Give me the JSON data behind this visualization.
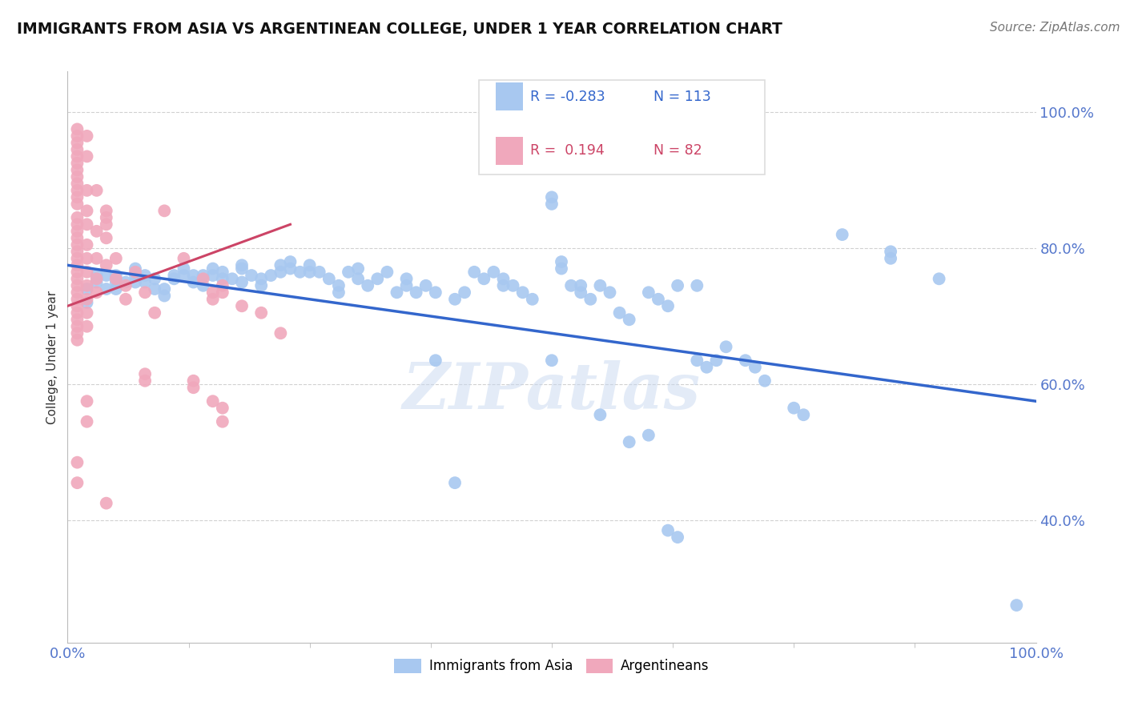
{
  "title": "IMMIGRANTS FROM ASIA VS ARGENTINEAN COLLEGE, UNDER 1 YEAR CORRELATION CHART",
  "source": "Source: ZipAtlas.com",
  "ylabel": "College, Under 1 year",
  "watermark": "ZIPatlas",
  "legend_r_blue": "-0.283",
  "legend_n_blue": "113",
  "legend_r_pink": "0.194",
  "legend_n_pink": "82",
  "background_color": "#ffffff",
  "grid_color": "#cccccc",
  "blue_color": "#a8c8f0",
  "pink_color": "#f0a8bc",
  "blue_line_color": "#3366cc",
  "pink_line_color": "#cc4466",
  "blue_scatter": [
    [
      0.02,
      0.74
    ],
    [
      0.02,
      0.72
    ],
    [
      0.03,
      0.75
    ],
    [
      0.03,
      0.76
    ],
    [
      0.04,
      0.76
    ],
    [
      0.04,
      0.74
    ],
    [
      0.05,
      0.74
    ],
    [
      0.05,
      0.76
    ],
    [
      0.05,
      0.75
    ],
    [
      0.06,
      0.75
    ],
    [
      0.07,
      0.76
    ],
    [
      0.07,
      0.77
    ],
    [
      0.07,
      0.75
    ],
    [
      0.08,
      0.76
    ],
    [
      0.08,
      0.75
    ],
    [
      0.09,
      0.74
    ],
    [
      0.09,
      0.755
    ],
    [
      0.1,
      0.74
    ],
    [
      0.1,
      0.73
    ],
    [
      0.11,
      0.76
    ],
    [
      0.11,
      0.755
    ],
    [
      0.12,
      0.77
    ],
    [
      0.12,
      0.76
    ],
    [
      0.13,
      0.76
    ],
    [
      0.13,
      0.75
    ],
    [
      0.14,
      0.76
    ],
    [
      0.14,
      0.745
    ],
    [
      0.15,
      0.77
    ],
    [
      0.15,
      0.76
    ],
    [
      0.16,
      0.755
    ],
    [
      0.16,
      0.765
    ],
    [
      0.17,
      0.755
    ],
    [
      0.18,
      0.775
    ],
    [
      0.18,
      0.77
    ],
    [
      0.18,
      0.75
    ],
    [
      0.19,
      0.76
    ],
    [
      0.2,
      0.755
    ],
    [
      0.2,
      0.745
    ],
    [
      0.21,
      0.76
    ],
    [
      0.22,
      0.775
    ],
    [
      0.22,
      0.765
    ],
    [
      0.23,
      0.78
    ],
    [
      0.23,
      0.77
    ],
    [
      0.24,
      0.765
    ],
    [
      0.25,
      0.765
    ],
    [
      0.25,
      0.775
    ],
    [
      0.26,
      0.765
    ],
    [
      0.27,
      0.755
    ],
    [
      0.28,
      0.745
    ],
    [
      0.28,
      0.735
    ],
    [
      0.29,
      0.765
    ],
    [
      0.3,
      0.77
    ],
    [
      0.3,
      0.755
    ],
    [
      0.31,
      0.745
    ],
    [
      0.32,
      0.755
    ],
    [
      0.33,
      0.765
    ],
    [
      0.34,
      0.735
    ],
    [
      0.35,
      0.745
    ],
    [
      0.35,
      0.755
    ],
    [
      0.36,
      0.735
    ],
    [
      0.37,
      0.745
    ],
    [
      0.38,
      0.735
    ],
    [
      0.4,
      0.725
    ],
    [
      0.41,
      0.735
    ],
    [
      0.42,
      0.765
    ],
    [
      0.43,
      0.755
    ],
    [
      0.44,
      0.765
    ],
    [
      0.45,
      0.745
    ],
    [
      0.45,
      0.755
    ],
    [
      0.46,
      0.745
    ],
    [
      0.47,
      0.735
    ],
    [
      0.48,
      0.725
    ],
    [
      0.5,
      0.875
    ],
    [
      0.5,
      0.865
    ],
    [
      0.51,
      0.78
    ],
    [
      0.51,
      0.77
    ],
    [
      0.52,
      0.745
    ],
    [
      0.53,
      0.745
    ],
    [
      0.53,
      0.735
    ],
    [
      0.54,
      0.725
    ],
    [
      0.55,
      0.745
    ],
    [
      0.56,
      0.735
    ],
    [
      0.57,
      0.705
    ],
    [
      0.58,
      0.695
    ],
    [
      0.6,
      0.735
    ],
    [
      0.61,
      0.725
    ],
    [
      0.62,
      0.715
    ],
    [
      0.63,
      0.745
    ],
    [
      0.65,
      0.745
    ],
    [
      0.65,
      0.635
    ],
    [
      0.66,
      0.625
    ],
    [
      0.67,
      0.635
    ],
    [
      0.68,
      0.655
    ],
    [
      0.7,
      0.635
    ],
    [
      0.71,
      0.625
    ],
    [
      0.72,
      0.605
    ],
    [
      0.75,
      0.565
    ],
    [
      0.76,
      0.555
    ],
    [
      0.8,
      0.82
    ],
    [
      0.85,
      0.795
    ],
    [
      0.85,
      0.785
    ],
    [
      0.9,
      0.755
    ],
    [
      0.5,
      0.635
    ],
    [
      0.55,
      0.555
    ],
    [
      0.6,
      0.525
    ],
    [
      0.58,
      0.515
    ],
    [
      0.38,
      0.635
    ],
    [
      0.4,
      0.455
    ],
    [
      0.62,
      0.385
    ],
    [
      0.63,
      0.375
    ],
    [
      0.98,
      0.275
    ]
  ],
  "pink_scatter": [
    [
      0.01,
      0.975
    ],
    [
      0.01,
      0.965
    ],
    [
      0.01,
      0.955
    ],
    [
      0.01,
      0.945
    ],
    [
      0.01,
      0.935
    ],
    [
      0.01,
      0.925
    ],
    [
      0.01,
      0.915
    ],
    [
      0.01,
      0.905
    ],
    [
      0.01,
      0.895
    ],
    [
      0.01,
      0.885
    ],
    [
      0.01,
      0.875
    ],
    [
      0.01,
      0.865
    ],
    [
      0.01,
      0.845
    ],
    [
      0.01,
      0.835
    ],
    [
      0.01,
      0.825
    ],
    [
      0.01,
      0.815
    ],
    [
      0.01,
      0.805
    ],
    [
      0.01,
      0.795
    ],
    [
      0.01,
      0.785
    ],
    [
      0.01,
      0.775
    ],
    [
      0.01,
      0.765
    ],
    [
      0.01,
      0.755
    ],
    [
      0.01,
      0.745
    ],
    [
      0.01,
      0.735
    ],
    [
      0.01,
      0.725
    ],
    [
      0.01,
      0.715
    ],
    [
      0.01,
      0.705
    ],
    [
      0.01,
      0.695
    ],
    [
      0.01,
      0.685
    ],
    [
      0.01,
      0.675
    ],
    [
      0.01,
      0.665
    ],
    [
      0.02,
      0.965
    ],
    [
      0.02,
      0.935
    ],
    [
      0.02,
      0.885
    ],
    [
      0.02,
      0.855
    ],
    [
      0.02,
      0.835
    ],
    [
      0.02,
      0.805
    ],
    [
      0.02,
      0.785
    ],
    [
      0.02,
      0.765
    ],
    [
      0.02,
      0.745
    ],
    [
      0.02,
      0.725
    ],
    [
      0.02,
      0.705
    ],
    [
      0.02,
      0.685
    ],
    [
      0.03,
      0.885
    ],
    [
      0.03,
      0.825
    ],
    [
      0.03,
      0.785
    ],
    [
      0.03,
      0.755
    ],
    [
      0.03,
      0.735
    ],
    [
      0.04,
      0.855
    ],
    [
      0.04,
      0.845
    ],
    [
      0.04,
      0.835
    ],
    [
      0.04,
      0.815
    ],
    [
      0.04,
      0.775
    ],
    [
      0.05,
      0.785
    ],
    [
      0.05,
      0.755
    ],
    [
      0.06,
      0.745
    ],
    [
      0.06,
      0.725
    ],
    [
      0.07,
      0.765
    ],
    [
      0.08,
      0.735
    ],
    [
      0.09,
      0.705
    ],
    [
      0.1,
      0.855
    ],
    [
      0.12,
      0.785
    ],
    [
      0.14,
      0.755
    ],
    [
      0.15,
      0.735
    ],
    [
      0.15,
      0.725
    ],
    [
      0.16,
      0.745
    ],
    [
      0.16,
      0.735
    ],
    [
      0.18,
      0.715
    ],
    [
      0.2,
      0.705
    ],
    [
      0.22,
      0.675
    ],
    [
      0.02,
      0.575
    ],
    [
      0.02,
      0.545
    ],
    [
      0.08,
      0.615
    ],
    [
      0.08,
      0.605
    ],
    [
      0.13,
      0.605
    ],
    [
      0.13,
      0.595
    ],
    [
      0.15,
      0.575
    ],
    [
      0.16,
      0.565
    ],
    [
      0.16,
      0.545
    ],
    [
      0.01,
      0.485
    ],
    [
      0.01,
      0.455
    ],
    [
      0.04,
      0.425
    ]
  ],
  "blue_line_x": [
    0.0,
    1.0
  ],
  "blue_line_y": [
    0.775,
    0.575
  ],
  "pink_line_x": [
    0.0,
    0.23
  ],
  "pink_line_y": [
    0.715,
    0.835
  ],
  "pink_line_dashed": false,
  "xlim": [
    0.0,
    1.0
  ],
  "ylim": [
    0.22,
    1.06
  ],
  "yticks": [
    0.4,
    0.6,
    0.8,
    1.0
  ],
  "ytick_labels": [
    "40.0%",
    "60.0%",
    "80.0%",
    "100.0%"
  ],
  "xticks": [
    0.0,
    1.0
  ],
  "xtick_labels": [
    "0.0%",
    "100.0%"
  ],
  "tick_color": "#5577cc",
  "title_fontsize": 13.5,
  "source_fontsize": 11,
  "ylabel_fontsize": 11
}
